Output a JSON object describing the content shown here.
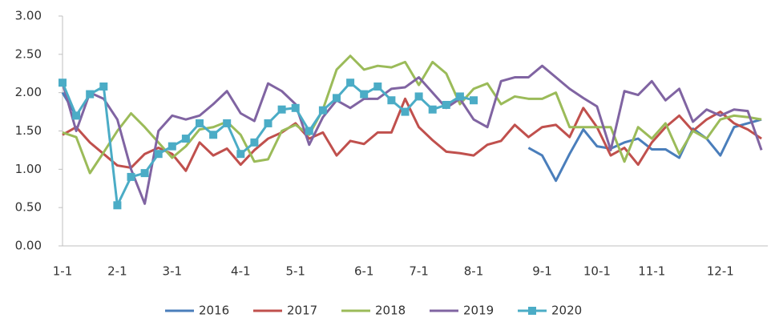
{
  "chart_data": {
    "type": "line",
    "categories": [
      "1-1",
      null,
      null,
      null,
      "2-1",
      null,
      null,
      null,
      "3-1",
      null,
      null,
      null,
      null,
      "4-1",
      null,
      null,
      null,
      "5-1",
      null,
      null,
      null,
      null,
      "6-1",
      null,
      null,
      null,
      "7-1",
      null,
      null,
      null,
      "8-1",
      null,
      null,
      null,
      null,
      "9-1",
      null,
      null,
      null,
      "10-1",
      null,
      null,
      null,
      "11-1",
      null,
      null,
      null,
      null,
      "12-1",
      null,
      null,
      null
    ],
    "series": [
      {
        "name": "2016",
        "color": "#4a7ebb",
        "values": [
          2.0,
          1.7,
          null,
          null,
          null,
          null,
          null,
          null,
          null,
          null,
          null,
          null,
          null,
          null,
          null,
          null,
          null,
          null,
          null,
          null,
          null,
          null,
          null,
          null,
          null,
          null,
          null,
          null,
          null,
          null,
          null,
          null,
          null,
          null,
          1.28,
          1.18,
          0.85,
          1.2,
          1.52,
          1.3,
          1.27,
          1.35,
          1.4,
          1.26,
          1.26,
          1.15,
          1.53,
          1.4,
          1.18,
          1.55,
          1.6,
          1.65
        ]
      },
      {
        "name": "2017",
        "color": "#c0504d",
        "values": [
          1.45,
          1.55,
          1.35,
          1.2,
          1.05,
          1.02,
          1.2,
          1.28,
          1.2,
          0.98,
          1.35,
          1.18,
          1.27,
          1.06,
          1.25,
          1.4,
          1.48,
          1.6,
          1.4,
          1.48,
          1.18,
          1.37,
          1.33,
          1.48,
          1.48,
          1.92,
          1.55,
          1.38,
          1.23,
          1.21,
          1.18,
          1.32,
          1.37,
          1.58,
          1.42,
          1.55,
          1.58,
          1.42,
          1.8,
          1.55,
          1.18,
          1.28,
          1.06,
          1.35,
          1.55,
          1.7,
          1.5,
          1.65,
          1.75,
          1.6,
          1.52,
          1.4
        ]
      },
      {
        "name": "2018",
        "color": "#9bbb59",
        "values": [
          1.48,
          1.42,
          0.95,
          1.22,
          1.5,
          1.73,
          1.55,
          1.35,
          1.15,
          1.3,
          1.52,
          1.55,
          1.62,
          1.45,
          1.1,
          1.13,
          1.5,
          1.58,
          1.45,
          1.78,
          2.3,
          2.48,
          2.3,
          2.35,
          2.33,
          2.4,
          2.1,
          2.4,
          2.25,
          1.85,
          2.05,
          2.12,
          1.85,
          1.95,
          1.92,
          1.92,
          2.0,
          1.55,
          1.55,
          1.55,
          1.55,
          1.1,
          1.55,
          1.4,
          1.6,
          1.2,
          1.5,
          1.4,
          1.65,
          1.7,
          1.68,
          1.65
        ]
      },
      {
        "name": "2019",
        "color": "#8064a2",
        "values": [
          2.13,
          1.5,
          2.0,
          1.92,
          1.65,
          1.0,
          0.55,
          1.5,
          1.7,
          1.65,
          1.7,
          1.85,
          2.02,
          1.73,
          1.63,
          2.12,
          2.02,
          1.85,
          1.32,
          1.68,
          1.9,
          1.8,
          1.92,
          1.92,
          2.05,
          2.07,
          2.2,
          2.0,
          1.8,
          1.92,
          1.65,
          1.55,
          2.15,
          2.2,
          2.2,
          2.35,
          2.2,
          2.05,
          1.93,
          1.82,
          1.25,
          2.02,
          1.97,
          2.15,
          1.9,
          2.05,
          1.62,
          1.78,
          1.7,
          1.78,
          1.76,
          1.25
        ]
      },
      {
        "name": "2020",
        "color": "#4bacc6",
        "marker": "square",
        "values": [
          2.13,
          1.7,
          1.98,
          2.08,
          0.53,
          0.9,
          0.95,
          1.2,
          1.3,
          1.4,
          1.6,
          1.45,
          1.6,
          1.2,
          1.35,
          1.6,
          1.78,
          1.8,
          1.5,
          1.77,
          1.93,
          2.13,
          1.98,
          2.08,
          1.9,
          1.75,
          1.95,
          1.78,
          1.84,
          1.95,
          1.9,
          null,
          null,
          null,
          null,
          null,
          null,
          null,
          null,
          null,
          null,
          null,
          null,
          null,
          null,
          null,
          null,
          null,
          null,
          null,
          null,
          null
        ]
      }
    ],
    "ylim": [
      0,
      3
    ],
    "yticks": [
      {
        "value": 0,
        "label": "0.00"
      },
      {
        "value": 0.5,
        "label": "0.50"
      },
      {
        "value": 1,
        "label": "1.00"
      },
      {
        "value": 1.5,
        "label": "1.50"
      },
      {
        "value": 2,
        "label": "2.00"
      },
      {
        "value": 2.5,
        "label": "2.50"
      },
      {
        "value": 3,
        "label": "3.00"
      }
    ],
    "grid": false,
    "legend": "bottom"
  }
}
